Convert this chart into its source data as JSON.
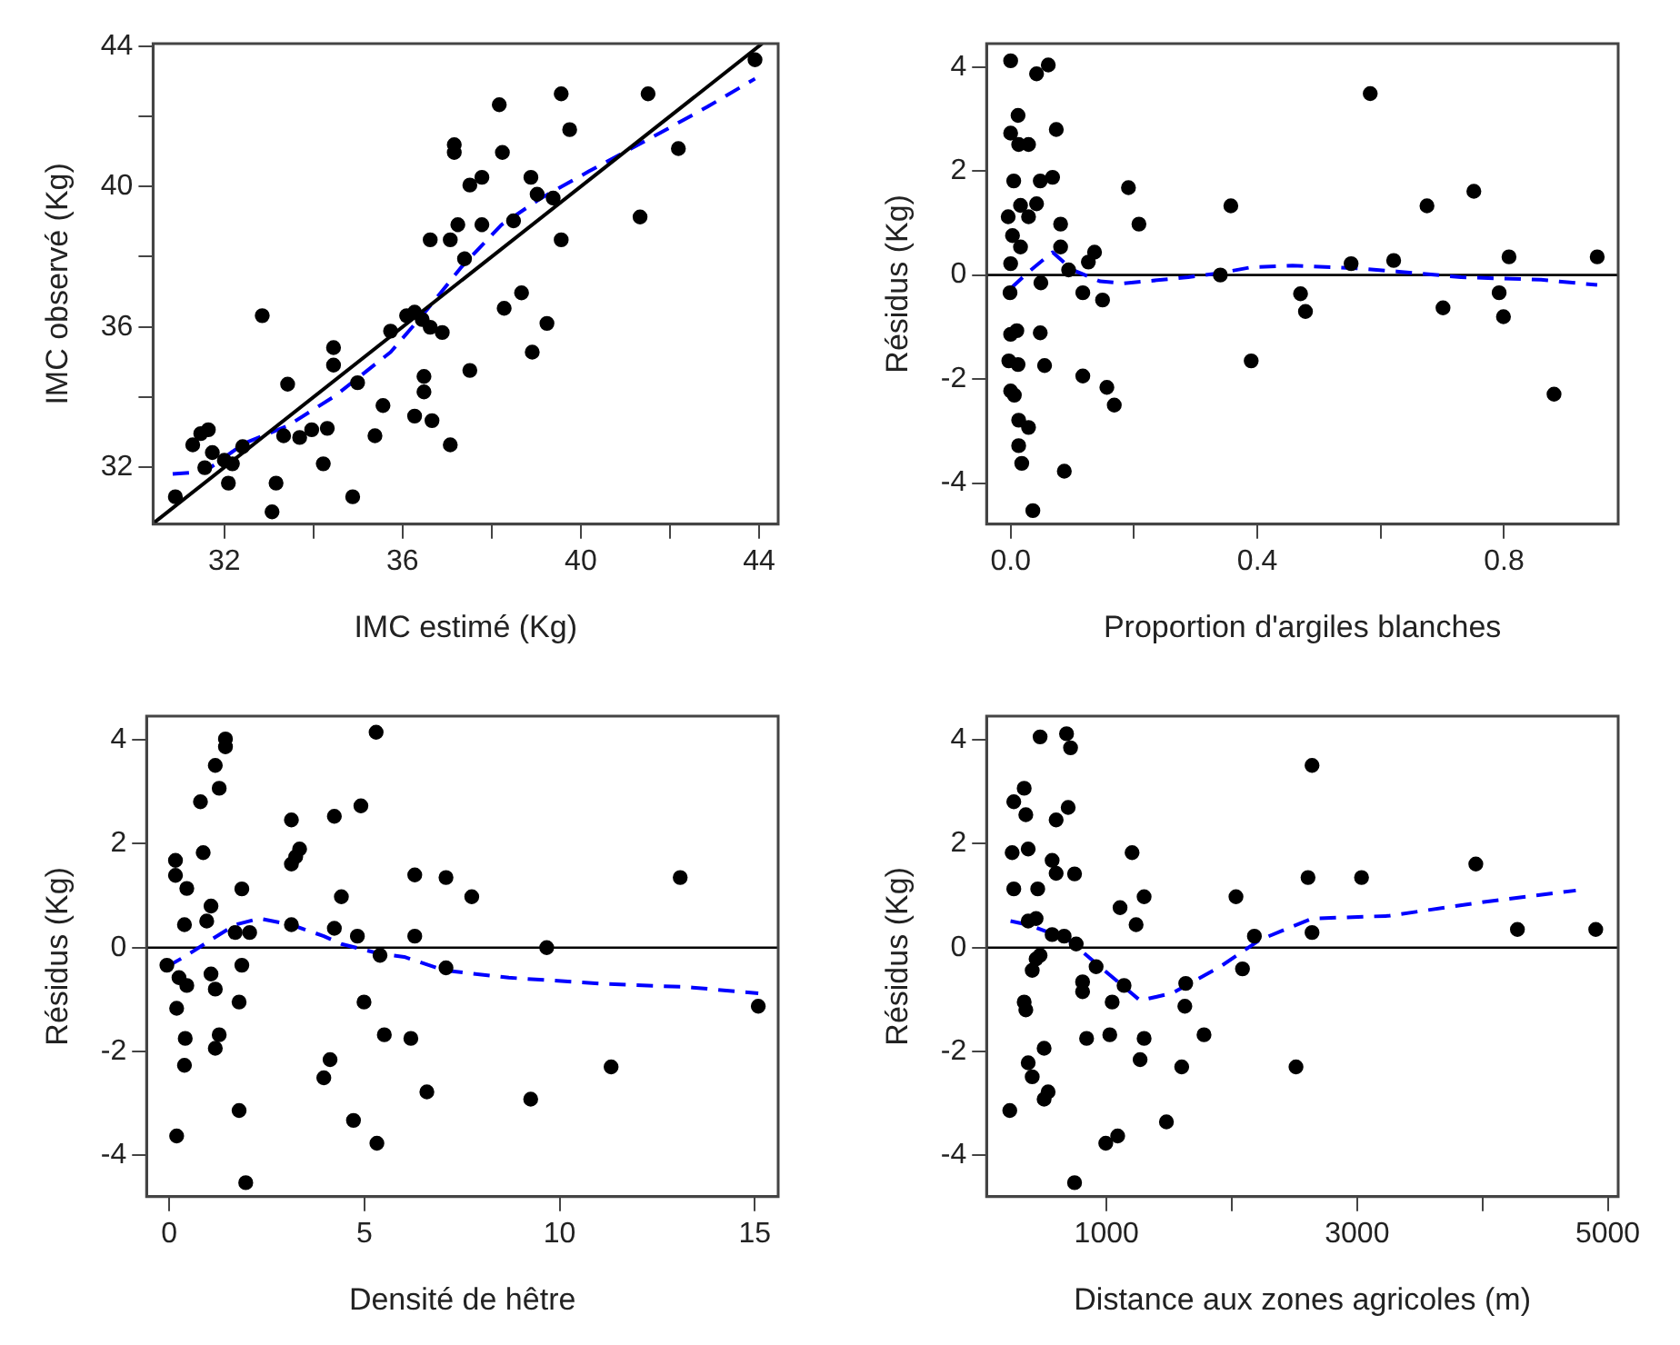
{
  "chart_data": [
    {
      "type": "scatter",
      "xlabel": "IMC estimé (Kg)",
      "ylabel": "IMC observé (Kg)",
      "xlim": [
        30.4,
        44.43
      ],
      "ylim": [
        30.38,
        44.07
      ],
      "xticks": [
        32,
        {
          "value": 34,
          "label": null
        },
        36,
        {
          "value": 38,
          "label": null
        },
        40,
        {
          "value": 42,
          "label": null
        },
        44
      ],
      "yticks": [
        32,
        {
          "value": 34,
          "label": null
        },
        36,
        {
          "value": 38,
          "label": null
        },
        40,
        {
          "value": 42,
          "label": null
        },
        44
      ],
      "grid": false,
      "series": [
        {
          "color": "#000000",
          "marker": "circle",
          "x": [
            43.91,
            38.17,
            39.56,
            41.51,
            39.75,
            37.16,
            37.16,
            38.24,
            42.19,
            37.51,
            37.78,
            38.88,
            39.02,
            39.38,
            41.33,
            36.62,
            37.07,
            37.24,
            37.78,
            38.49,
            39.56,
            37.39,
            38.67,
            38.28,
            39.24,
            38.91,
            37.51,
            32.85,
            36.09,
            36.27,
            36.44,
            36.62,
            36.89,
            35.73,
            34.45,
            34.45,
            34.99,
            33.42,
            36.48,
            36.48,
            36.27,
            36.66,
            37.07,
            35.56,
            35.38,
            34.31,
            33.96,
            33.69,
            33.33,
            34.22,
            34.88,
            33.07,
            33.16,
            31.64,
            31.47,
            31.29,
            31.73,
            32.0,
            32.18,
            32.09,
            32.41,
            30.9,
            31.56
          ],
          "values": [
            43.61,
            42.33,
            42.64,
            42.64,
            41.62,
            41.19,
            40.97,
            40.97,
            41.08,
            40.04,
            40.26,
            40.26,
            39.78,
            39.67,
            39.13,
            38.48,
            38.48,
            38.91,
            38.91,
            39.02,
            38.48,
            37.94,
            36.97,
            36.53,
            36.1,
            35.28,
            34.76,
            36.32,
            36.32,
            36.42,
            36.21,
            35.99,
            35.84,
            35.88,
            35.41,
            34.91,
            34.41,
            34.37,
            34.59,
            34.15,
            33.46,
            33.33,
            32.64,
            33.76,
            32.9,
            33.11,
            33.07,
            32.85,
            32.9,
            32.1,
            31.16,
            30.73,
            31.55,
            33.07,
            32.96,
            32.64,
            32.42,
            32.2,
            32.1,
            31.55,
            32.59,
            31.16,
            31.99
          ]
        },
        {
          "type": "line",
          "color": "#000000",
          "line_style": "solid",
          "marker": "none",
          "x": [
            30.4,
            44.07
          ],
          "values": [
            30.4,
            44.07
          ]
        },
        {
          "type": "line",
          "color": "#0000ff",
          "line_style": "dashed",
          "marker": "none",
          "x": [
            30.84,
            31.56,
            32.44,
            33.42,
            34.49,
            35.73,
            36.44,
            37.33,
            38.22,
            39.11,
            40.18,
            41.6,
            42.84,
            43.91
          ],
          "values": [
            31.81,
            31.88,
            32.68,
            33.18,
            34.04,
            35.28,
            36.32,
            37.72,
            38.91,
            39.67,
            40.43,
            41.4,
            42.27,
            43.07
          ]
        }
      ]
    },
    {
      "type": "scatter",
      "xlabel": "Proportion d'argiles blanches",
      "ylabel": "Résidus (Kg)",
      "xlim": [
        -0.039,
        0.985
      ],
      "ylim": [
        -4.79,
        4.45
      ],
      "xticks": [
        {
          "value": 0,
          "label": "0.0"
        },
        {
          "value": 0.2,
          "label": null
        },
        0.4,
        {
          "value": 0.6,
          "label": null
        },
        0.8
      ],
      "yticks": [
        -4,
        -2,
        0,
        2,
        4
      ],
      "grid": false,
      "ref_lines": [
        {
          "axis": "y",
          "value": 0,
          "color": "#000000"
        }
      ],
      "series": [
        {
          "color": "#000000",
          "marker": "circle",
          "x": [
            0.0,
            0.042,
            0.061,
            0.583,
            0.074,
            0.012,
            0.0,
            0.013,
            0.029,
            0.005,
            0.048,
            0.068,
            0.191,
            -0.004,
            0.016,
            0.042,
            0.029,
            0.081,
            0.208,
            0.357,
            0.675,
            0.751,
            0.003,
            0.016,
            0.0,
            0.081,
            0.136,
            0.126,
            0.094,
            0.552,
            0.621,
            0.808,
            0.951,
            0.34,
            0.049,
            -0.001,
            0.117,
            0.149,
            0.47,
            0.478,
            0.701,
            0.792,
            0.799,
            0.0,
            0.01,
            0.048,
            -0.003,
            0.012,
            0.055,
            0.39,
            0.117,
            0.156,
            0.168,
            0.0,
            0.006,
            0.881,
            0.013,
            0.029,
            0.013,
            0.018,
            0.087,
            0.036
          ],
          "values": [
            4.12,
            3.87,
            4.04,
            3.49,
            2.8,
            3.07,
            2.73,
            2.51,
            2.51,
            1.81,
            1.81,
            1.88,
            1.68,
            1.12,
            1.34,
            1.37,
            1.12,
            0.98,
            0.98,
            1.33,
            1.33,
            1.61,
            0.76,
            0.54,
            0.22,
            0.54,
            0.44,
            0.25,
            0.1,
            0.22,
            0.28,
            0.35,
            0.35,
            0.0,
            -0.15,
            -0.34,
            -0.34,
            -0.48,
            -0.36,
            -0.7,
            -0.63,
            -0.34,
            -0.8,
            -1.14,
            -1.07,
            -1.11,
            -1.65,
            -1.72,
            -1.74,
            -1.65,
            -1.94,
            -2.16,
            -2.5,
            -2.23,
            -2.31,
            -2.29,
            -2.79,
            -2.93,
            -3.28,
            -3.62,
            -3.77,
            -4.53
          ]
        },
        {
          "type": "line",
          "color": "#0000ff",
          "line_style": "dashed",
          "marker": "none",
          "x": [
            0,
            0.029,
            0.068,
            0.1,
            0.145,
            0.184,
            0.288,
            0.34,
            0.39,
            0.457,
            0.561,
            0.626,
            0.73,
            0.86,
            0.951
          ],
          "values": [
            -0.26,
            0.06,
            0.44,
            0.1,
            -0.12,
            -0.16,
            -0.04,
            0.04,
            0.15,
            0.18,
            0.13,
            0.07,
            -0.04,
            -0.09,
            -0.19
          ]
        }
      ]
    },
    {
      "type": "scatter",
      "xlabel": "Densité de hêtre",
      "ylabel": "Résidus (Kg)",
      "xlim": [
        -0.58,
        15.6
      ],
      "ylim": [
        -4.8,
        4.46
      ],
      "xticks": [
        0,
        5,
        10,
        15
      ],
      "yticks": [
        -4,
        -2,
        0,
        2,
        4
      ],
      "grid": false,
      "ref_lines": [
        {
          "axis": "y",
          "value": 0,
          "color": "#000000"
        }
      ],
      "series": [
        {
          "color": "#000000",
          "marker": "circle",
          "x": [
            5.3,
            1.44,
            1.44,
            1.18,
            1.28,
            0.8,
            4.91,
            3.13,
            4.23,
            3.34,
            3.24,
            3.13,
            0.87,
            0.16,
            0.16,
            0.45,
            1.86,
            6.29,
            7.09,
            7.75,
            13.09,
            4.41,
            0.39,
            1.07,
            0.96,
            1.69,
            2.06,
            3.13,
            4.23,
            4.82,
            6.29,
            9.67,
            -0.06,
            0.25,
            0.45,
            1.07,
            1.18,
            1.86,
            5.4,
            7.09,
            15.09,
            1.79,
            4.99,
            0.19,
            0.41,
            0.39,
            1.28,
            1.18,
            5.51,
            6.19,
            4.12,
            3.96,
            6.6,
            9.26,
            11.32,
            1.79,
            4.72,
            0.19,
            5.32,
            1.96
          ],
          "values": [
            4.15,
            4.02,
            3.87,
            3.51,
            3.07,
            2.81,
            2.73,
            2.46,
            2.53,
            1.9,
            1.75,
            1.61,
            1.83,
            1.68,
            1.39,
            1.14,
            1.13,
            1.4,
            1.35,
            0.98,
            1.35,
            0.98,
            0.44,
            0.8,
            0.51,
            0.29,
            0.29,
            0.44,
            0.37,
            0.22,
            0.22,
            0.0,
            -0.34,
            -0.58,
            -0.73,
            -0.51,
            -0.8,
            -0.34,
            -0.15,
            -0.39,
            -1.13,
            -1.05,
            -1.05,
            -1.17,
            -1.75,
            -2.27,
            -1.68,
            -1.94,
            -1.68,
            -1.75,
            -2.16,
            -2.51,
            -2.78,
            -2.92,
            -2.3,
            -3.14,
            -3.33,
            -3.63,
            -3.77,
            -4.53
          ]
        },
        {
          "type": "line",
          "color": "#0000ff",
          "line_style": "dashed",
          "marker": "none",
          "x": [
            -0.06,
            0.45,
            1.07,
            1.69,
            2.31,
            3.13,
            3.96,
            4.41,
            5.4,
            6.02,
            7.05,
            8.7,
            11.18,
            13.24,
            15.09
          ],
          "values": [
            -0.37,
            -0.15,
            0.15,
            0.44,
            0.56,
            0.44,
            0.22,
            0.07,
            -0.12,
            -0.18,
            -0.44,
            -0.58,
            -0.7,
            -0.76,
            -0.88
          ]
        }
      ]
    },
    {
      "type": "scatter",
      "xlabel": "Distance aux zones agricoles (m)",
      "ylabel": "Résidus (Kg)",
      "xlim": [
        43,
        5083
      ],
      "ylim": [
        -4.8,
        4.46
      ],
      "xticks": [
        1000,
        {
          "value": 2000,
          "label": null
        },
        3000,
        {
          "value": 4000,
          "label": null
        },
        5000
      ],
      "yticks": [
        -4,
        -2,
        0,
        2,
        4
      ],
      "grid": false,
      "ref_lines": [
        {
          "axis": "y",
          "value": 0,
          "color": "#000000"
        }
      ],
      "series": [
        {
          "color": "#000000",
          "marker": "circle",
          "x": [
            470,
            681,
            713,
            2640,
            343,
            260,
            356,
            598,
            694,
            247,
            375,
            1204,
            566,
            598,
            745,
            260,
            451,
            3947,
            2608,
            3035,
            1300,
            1108,
            1236,
            2033,
            2640,
            4279,
            4904,
            2180,
            375,
            438,
            566,
            662,
            758,
            2085,
            470,
            407,
            438,
            917,
            809,
            809,
            1140,
            1045,
            1632,
            1625,
            343,
            356,
            841,
            1026,
            1300,
            1778,
            502,
            375,
            407,
            1268,
            1600,
            2512,
            534,
            502,
            228,
            1478,
            1089,
            994,
            745
          ],
          "values": [
            4.06,
            4.12,
            3.85,
            3.51,
            3.07,
            2.81,
            2.56,
            2.46,
            2.7,
            1.83,
            1.9,
            1.83,
            1.68,
            1.43,
            1.42,
            1.13,
            1.13,
            1.61,
            1.35,
            1.35,
            0.98,
            0.77,
            0.44,
            0.98,
            0.29,
            0.35,
            0.35,
            0.22,
            0.51,
            0.56,
            0.25,
            0.22,
            0.07,
            -0.41,
            -0.15,
            -0.44,
            -0.22,
            -0.37,
            -0.66,
            -0.85,
            -0.73,
            -1.05,
            -0.69,
            -1.13,
            -1.05,
            -1.2,
            -1.75,
            -1.68,
            -1.75,
            -1.68,
            -1.94,
            -2.22,
            -2.49,
            -2.16,
            -2.3,
            -2.3,
            -2.78,
            -2.92,
            -3.14,
            -3.36,
            -3.63,
            -3.77,
            -4.53
          ]
        },
        {
          "type": "line",
          "color": "#0000ff",
          "line_style": "dashed",
          "marker": "none",
          "x": [
            234,
            375,
            694,
            949,
            1268,
            1523,
            1906,
            2225,
            2640,
            3246,
            4011,
            4745
          ],
          "values": [
            0.51,
            0.44,
            0.15,
            -0.37,
            -1.02,
            -0.88,
            -0.37,
            0.15,
            0.56,
            0.61,
            0.88,
            1.1
          ]
        }
      ]
    }
  ]
}
